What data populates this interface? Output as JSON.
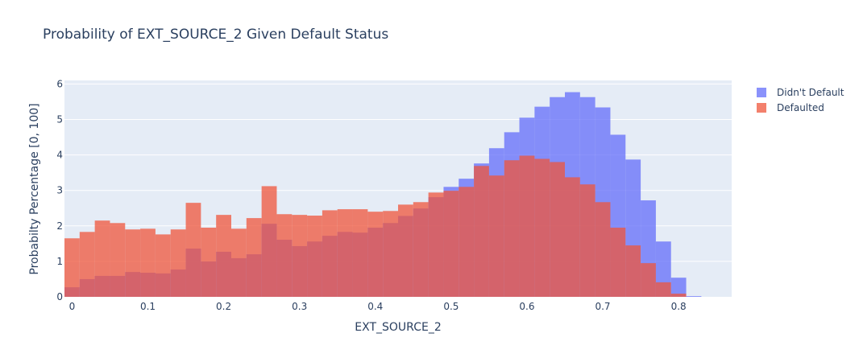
{
  "title": "Probability of EXT_SOURCE_2 Given Default Status",
  "legend": {
    "items": [
      {
        "label": "Didn't Default",
        "color": "#636efa"
      },
      {
        "label": "Defaulted",
        "color": "#EF553B"
      }
    ]
  },
  "colors": {
    "plot_bg": "#e5ecf6",
    "grid": "#ffffff",
    "text": "#2a3f5f",
    "bar_opacity": 0.75
  },
  "chart_data": {
    "type": "bar",
    "subtype": "overlaid histogram",
    "title": "Probability of EXT_SOURCE_2 Given Default Status",
    "xlabel": "EXT_SOURCE_2",
    "ylabel": "Probabilty Percentage [0, 100]",
    "xlim": [
      -0.01,
      0.87
    ],
    "ylim": [
      0,
      6.1
    ],
    "x_ticks": [
      "0",
      "0.1",
      "0.2",
      "0.3",
      "0.4",
      "0.5",
      "0.6",
      "0.7",
      "0.8"
    ],
    "x_tick_values": [
      0,
      0.1,
      0.2,
      0.3,
      0.4,
      0.5,
      0.6,
      0.7,
      0.8
    ],
    "y_ticks": [
      "0",
      "1",
      "2",
      "3",
      "4",
      "5",
      "6"
    ],
    "y_tick_values": [
      0,
      1,
      2,
      3,
      4,
      5,
      6
    ],
    "grid": true,
    "legend_position": "right-top",
    "bin_start": -0.01,
    "bin_width": 0.02,
    "bin_centers": [
      0,
      0.02,
      0.04,
      0.06,
      0.08,
      0.1,
      0.12,
      0.14,
      0.16,
      0.18,
      0.2,
      0.22,
      0.24,
      0.26,
      0.28,
      0.3,
      0.32,
      0.34,
      0.36,
      0.38,
      0.4,
      0.42,
      0.44,
      0.46,
      0.48,
      0.5,
      0.52,
      0.54,
      0.56,
      0.58,
      0.6,
      0.62,
      0.64,
      0.66,
      0.68,
      0.7,
      0.72,
      0.74,
      0.76,
      0.78,
      0.8,
      0.82,
      0.84
    ],
    "series": [
      {
        "name": "Didn't Default",
        "color": "#636efa",
        "values": [
          0.27,
          0.5,
          0.59,
          0.59,
          0.7,
          0.68,
          0.66,
          0.77,
          1.36,
          1.0,
          1.27,
          1.09,
          1.2,
          2.06,
          1.61,
          1.43,
          1.56,
          1.72,
          1.83,
          1.81,
          1.95,
          2.08,
          2.28,
          2.49,
          2.81,
          3.1,
          3.33,
          3.76,
          4.19,
          4.64,
          5.05,
          5.36,
          5.63,
          5.77,
          5.63,
          5.34,
          4.57,
          3.87,
          2.72,
          1.56,
          0.54,
          0.02,
          0.0
        ]
      },
      {
        "name": "Defaulted",
        "color": "#EF553B",
        "values": [
          1.65,
          1.83,
          2.15,
          2.08,
          1.9,
          1.92,
          1.76,
          1.9,
          2.65,
          1.95,
          2.31,
          1.92,
          2.22,
          3.12,
          2.33,
          2.31,
          2.29,
          2.44,
          2.47,
          2.47,
          2.4,
          2.42,
          2.6,
          2.67,
          2.94,
          2.99,
          3.1,
          3.69,
          3.42,
          3.85,
          3.98,
          3.89,
          3.8,
          3.37,
          3.17,
          2.67,
          1.95,
          1.45,
          0.95,
          0.41,
          0.09,
          0.0,
          0.0
        ]
      }
    ]
  }
}
